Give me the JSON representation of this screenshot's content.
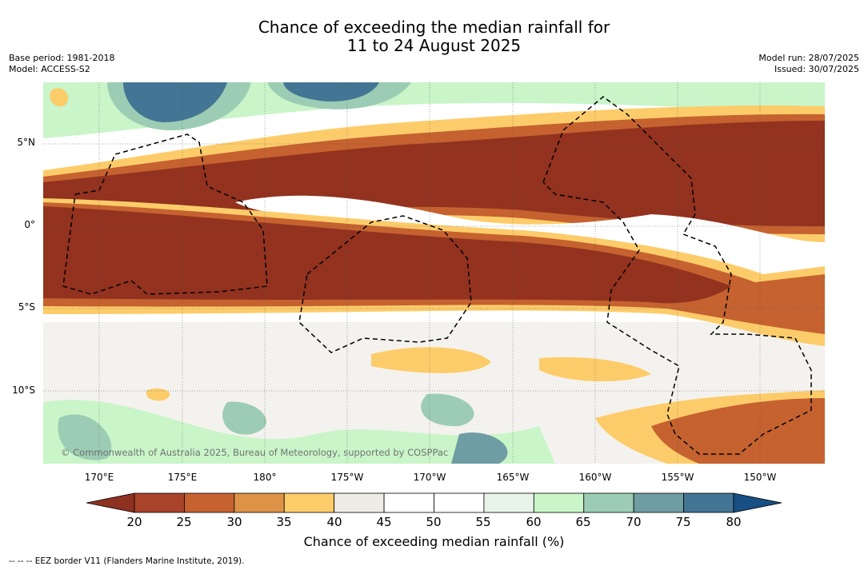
{
  "title_line1": "Chance of exceeding the median rainfall for",
  "title_line2": "11 to 24 August 2025",
  "base_period": "Base period: 1981-2018",
  "model": "Model: ACCESS-S2",
  "model_run": "Model run: 28/07/2025",
  "issued": "Issued: 30/07/2025",
  "lat_labels": [
    "5°N",
    "0°",
    "5°S",
    "10°S"
  ],
  "lon_labels": [
    "170°E",
    "175°E",
    "180°",
    "175°W",
    "170°W",
    "165°W",
    "160°W",
    "155°W",
    "150°W"
  ],
  "credit": "© Commonwealth of Australia 2025, Bureau of Meteorology, supported by COSPPac",
  "colorbar": {
    "label": "Chance of exceeding median rainfall (%)",
    "ticks": [
      "20",
      "25",
      "30",
      "35",
      "40",
      "45",
      "50",
      "55",
      "60",
      "65",
      "70",
      "75",
      "80"
    ],
    "colors": [
      "#a9432a",
      "#c5622f",
      "#dc9348",
      "#fdcc6a",
      "#efebe5",
      "#ffffff",
      "#ffffff",
      "#e8f4e8",
      "#c9f5c9",
      "#9ccdb4",
      "#6e9ea3",
      "#437594"
    ],
    "low_color": "#8f3121",
    "high_color": "#174e83"
  },
  "legend_note": "--  --  -- EEZ border V11 (Flanders Marine Institute, 2019)."
}
